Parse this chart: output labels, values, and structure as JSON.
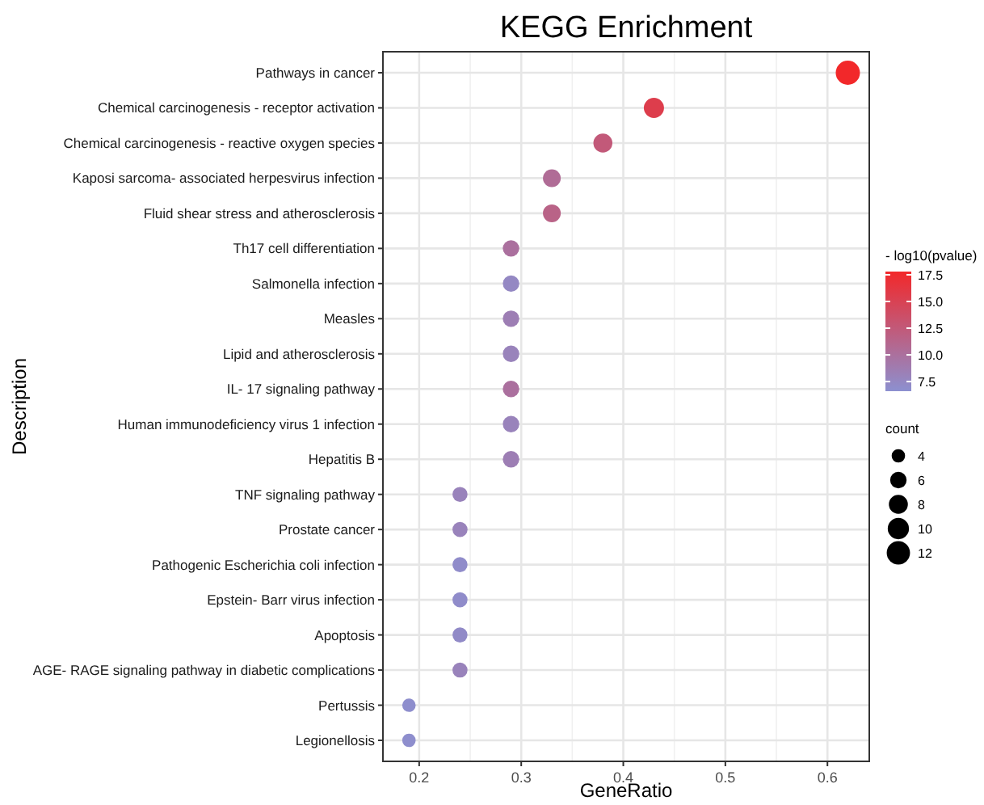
{
  "chart_data": {
    "type": "scatter",
    "title": "KEGG Enrichment",
    "xlabel": "GeneRatio",
    "ylabel": "Description",
    "orientation": "horizontal",
    "categories": [
      "Pathways in cancer",
      "Chemical carcinogenesis -  receptor activation",
      "Chemical carcinogenesis -  reactive oxygen species",
      "Kaposi sarcoma- associated herpesvirus infection",
      "Fluid shear stress and atherosclerosis",
      "Th17 cell differentiation",
      "Salmonella infection",
      "Measles",
      "Lipid and atherosclerosis",
      "IL- 17 signaling pathway",
      "Human immunodeficiency virus 1 infection",
      "Hepatitis B",
      "TNF signaling pathway",
      "Prostate cancer",
      "Pathogenic Escherichia coli infection",
      "Epstein- Barr virus infection",
      "Apoptosis",
      "AGE- RAGE signaling pathway in diabetic complications",
      "Pertussis",
      "Legionellosis"
    ],
    "values": [
      0.62,
      0.43,
      0.38,
      0.33,
      0.33,
      0.29,
      0.29,
      0.29,
      0.29,
      0.29,
      0.29,
      0.29,
      0.24,
      0.24,
      0.24,
      0.24,
      0.24,
      0.24,
      0.19,
      0.19
    ],
    "sizes": [
      13,
      9,
      8,
      7,
      7,
      6,
      6,
      6,
      6,
      6,
      6,
      6,
      5,
      5,
      5,
      5,
      5,
      5,
      4,
      4
    ],
    "size_legend": [
      4,
      6,
      8,
      10,
      12
    ],
    "legend_title": "count",
    "cvalues": [
      17.8,
      15.5,
      12.5,
      10.5,
      11.5,
      10,
      7.5,
      8.5,
      8,
      10,
      8,
      8.5,
      8,
      8,
      7,
      7,
      7.2,
      8,
      6.8,
      6.8
    ],
    "clim": [
      6.6,
      17.8
    ],
    "cticks": [
      {
        "value": 7.5,
        "label": "7.5"
      },
      {
        "value": 10,
        "label": "10.0"
      },
      {
        "value": 12.5,
        "label": "12.5"
      },
      {
        "value": 15,
        "label": "15.0"
      },
      {
        "value": 17.5,
        "label": "17.5"
      }
    ],
    "clabel": "- log10(pvalue)",
    "xlim": [
      0.1645,
      0.641
    ],
    "xticks": [
      0.2,
      0.3,
      0.4,
      0.5,
      0.6
    ],
    "grid": true
  }
}
